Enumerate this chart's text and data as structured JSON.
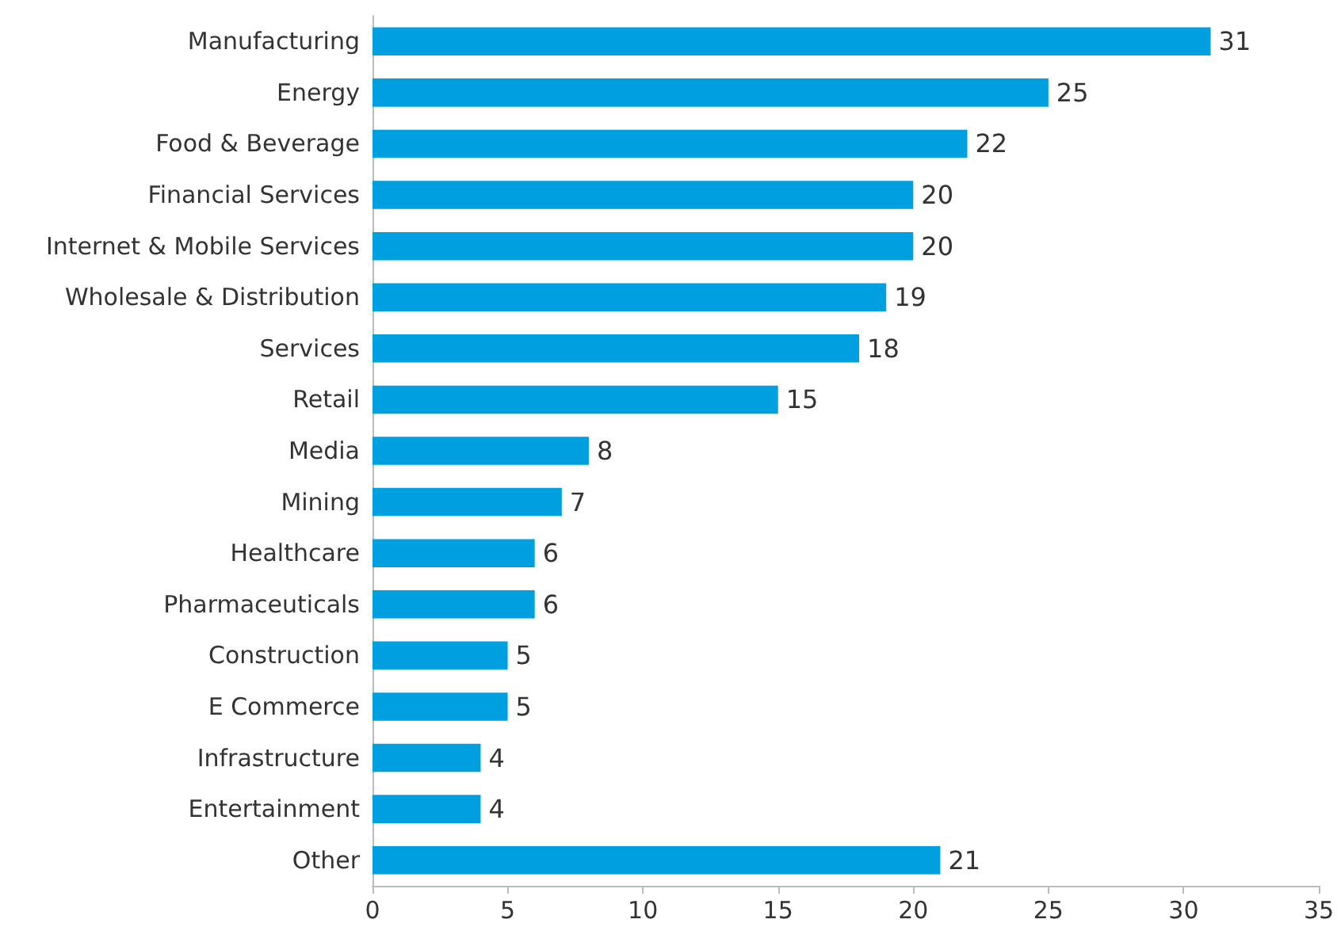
{
  "chart_data": {
    "type": "bar",
    "orientation": "horizontal",
    "categories": [
      "Manufacturing",
      "Energy",
      "Food & Beverage",
      "Financial Services",
      "Internet & Mobile Services",
      "Wholesale & Distribution",
      "Services",
      "Retail",
      "Media",
      "Mining",
      "Healthcare",
      "Pharmaceuticals",
      "Construction",
      "E Commerce",
      "Infrastructure",
      "Entertainment",
      "Other"
    ],
    "values": [
      31,
      25,
      22,
      20,
      20,
      19,
      18,
      15,
      8,
      7,
      6,
      6,
      5,
      5,
      4,
      4,
      21
    ],
    "color": "#009fdf",
    "xlim": [
      0,
      35
    ],
    "xticks": [
      0,
      5,
      10,
      15,
      20,
      25,
      30,
      35
    ],
    "data_labels": true,
    "grid": false
  }
}
